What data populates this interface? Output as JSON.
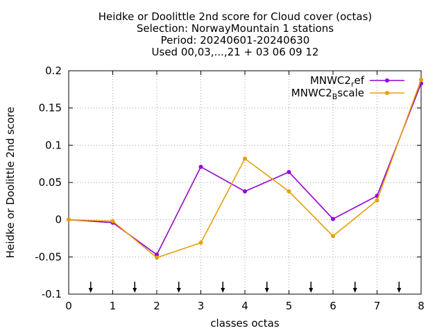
{
  "chart_data": {
    "type": "line",
    "title_lines": [
      "Heidke or Doolittle 2nd score  for Cloud cover (octas)",
      "Selection: NorwayMountain      1 stations",
      "Period: 20240601-20240630",
      "Used 00,03,...,21 + 03 06 09 12"
    ],
    "xlabel": "classes octas",
    "ylabel": "Heidke or Doolittle 2nd score",
    "xlim": [
      0,
      8
    ],
    "ylim": [
      -0.1,
      0.2
    ],
    "x_ticks": [
      0,
      1,
      2,
      3,
      4,
      5,
      6,
      7,
      8
    ],
    "x_tick_labels": [
      "0",
      "1",
      "2",
      "3",
      "4",
      "5",
      "6",
      "7",
      "8"
    ],
    "y_ticks": [
      -0.1,
      -0.05,
      0,
      0.05,
      0.1,
      0.15,
      0.2
    ],
    "y_tick_labels": [
      "-0.1",
      "-0.05",
      "0",
      "0.05",
      "0.1",
      "0.15",
      "0.2"
    ],
    "grid": true,
    "legend_position": "top-right",
    "arrow_markers_x": [
      0.5,
      1.5,
      2.5,
      3.5,
      4.5,
      5.5,
      6.5,
      7.5
    ],
    "series": [
      {
        "name_main": "MNWC2",
        "name_sub": "r",
        "name_rest": "ef",
        "color": "#9400d3",
        "x": [
          0,
          1,
          2,
          3,
          4,
          5,
          6,
          7,
          8
        ],
        "values": [
          0.0,
          -0.004,
          -0.047,
          0.071,
          0.038,
          0.064,
          0.001,
          0.032,
          0.183
        ]
      },
      {
        "name_main": "MNWC2",
        "name_sub": "B",
        "name_rest": "scale",
        "color": "#e69f00",
        "x": [
          0,
          1,
          2,
          3,
          4,
          5,
          6,
          7,
          8
        ],
        "values": [
          0.0,
          -0.002,
          -0.051,
          -0.031,
          0.082,
          0.038,
          -0.022,
          0.026,
          0.188
        ]
      }
    ]
  }
}
